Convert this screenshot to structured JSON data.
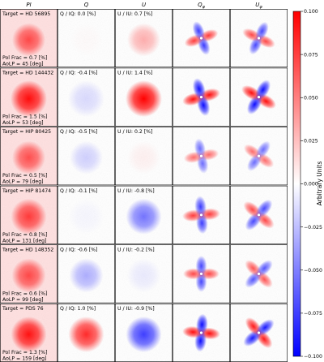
{
  "chart_data": {
    "type": "heatmap",
    "column_headers": [
      "PI",
      "Q",
      "U",
      "Q_φ",
      "U_φ"
    ],
    "colorbar": {
      "label": "Arbitrary Units",
      "range": [
        -0.1,
        0.1
      ],
      "ticks": [
        "0.100",
        "0.075",
        "0.050",
        "0.025",
        "0.000",
        "−0.025",
        "−0.050",
        "−0.075",
        "−0.100"
      ],
      "colormap": "bwr",
      "color_neg": "#0000ff",
      "color_pos": "#ff0000"
    },
    "rows": [
      {
        "target": "Target = HD 56895",
        "q_text": "Q / IQ: 0.0 [%]",
        "u_text": "U / IU: 0.7 [%]",
        "pol_frac": "Pol Frac = 0.7 [%]",
        "aolp": "AoLP = 45 [deg]",
        "pi_peak": 0.55,
        "q_peak": 0.05,
        "u_peak": 0.5,
        "qphi_peak": 0.8,
        "uphi_peak": 0.75,
        "width": 0.65
      },
      {
        "target": "Target = HD 144432",
        "q_text": "Q / IQ: -0.4 [%]",
        "u_text": "U / IU: 1.4 [%]",
        "pol_frac": "Pol Frac = 1.5 [%]",
        "aolp": "AoLP = 53 [deg]",
        "pi_peak": 1.0,
        "q_peak": -0.3,
        "u_peak": 1.0,
        "qphi_peak": 1.0,
        "uphi_peak": 1.0,
        "width": 0.85
      },
      {
        "target": "Target = HIP 80425",
        "q_text": "Q / IQ: -0.5 [%]",
        "u_text": "U / IU: 0.2 [%]",
        "pol_frac": "Pol Frac = 0.5 [%]",
        "aolp": "AoLP = 79 [deg]",
        "pi_peak": 0.5,
        "q_peak": -0.35,
        "u_peak": 0.15,
        "qphi_peak": 0.6,
        "uphi_peak": 0.6,
        "width": 0.65
      },
      {
        "target": "Target = HIP 81474",
        "q_text": "Q / IQ: -0.1 [%]",
        "u_text": "U / IU: -0.8 [%]",
        "pol_frac": "Pol Frac = 0.8 [%]",
        "aolp": "AoLP = 131 [deg]",
        "pi_peak": 0.65,
        "q_peak": -0.1,
        "u_peak": -0.7,
        "qphi_peak": 0.8,
        "uphi_peak": 0.75,
        "width": 0.8
      },
      {
        "target": "Target = HD 148352",
        "q_text": "Q / IQ: -0.6 [%]",
        "u_text": "U / IU: -0.2 [%]",
        "pol_frac": "Pol Frac = 0.6 [%]",
        "aolp": "AoLP = 99 [deg]",
        "pi_peak": 0.55,
        "q_peak": -0.5,
        "u_peak": -0.2,
        "qphi_peak": 0.75,
        "uphi_peak": 0.7,
        "width": 0.7
      },
      {
        "target": "Target = PDS 76",
        "q_text": "Q / IQ: 1.0 [%]",
        "u_text": "U / IU: -0.9 [%]",
        "pol_frac": "Pol Frac = 1.3 [%]",
        "aolp": "AoLP = 159 [deg]",
        "pi_peak": 0.95,
        "q_peak": 0.9,
        "u_peak": -0.85,
        "qphi_peak": 1.0,
        "uphi_peak": 0.95,
        "width": 0.8
      }
    ]
  }
}
